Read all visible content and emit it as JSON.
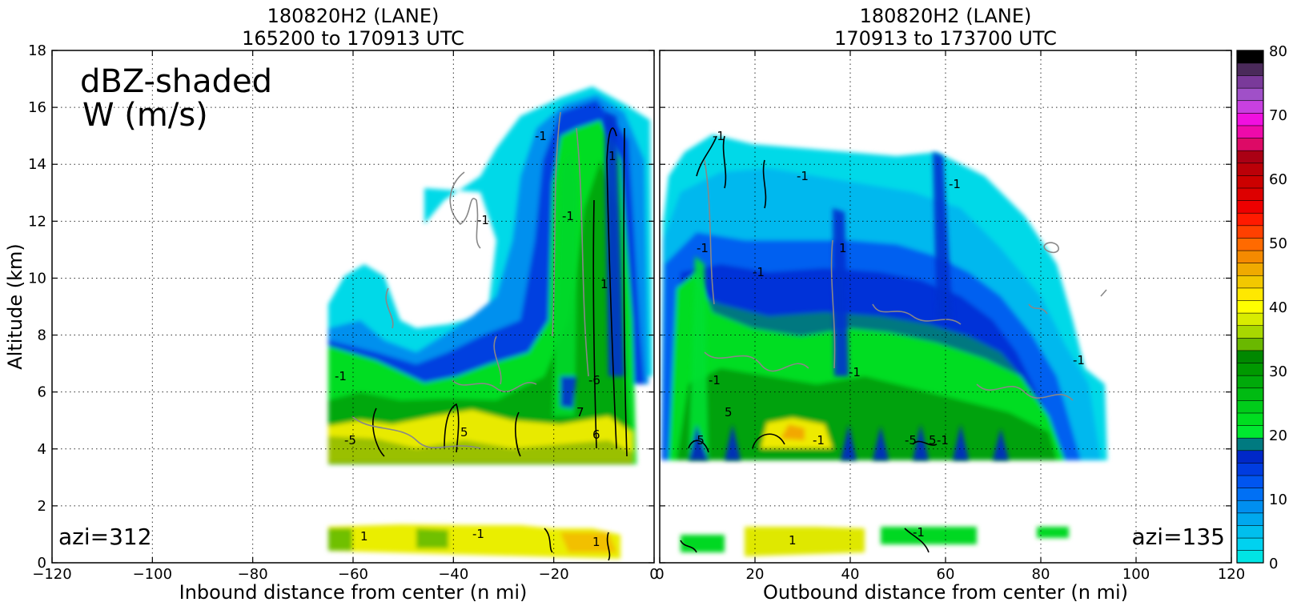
{
  "chart_data": [
    {
      "type": "heatmap",
      "title": "180820H2 (LANE)",
      "subtitle": "165200 to 170913 UTC",
      "xlabel": "Inbound distance from center (n mi)",
      "ylabel": "Altitude (km)",
      "xlim": [
        -120,
        0
      ],
      "ylim": [
        0,
        18
      ],
      "x_ticks": [
        "−120",
        "−100",
        "−80",
        "−60",
        "−40",
        "−20",
        "0"
      ],
      "y_ticks": [
        "0",
        "2",
        "4",
        "6",
        "8",
        "10",
        "12",
        "14",
        "16",
        "18"
      ],
      "annotation": "dBZ-shaded",
      "annotation2": "W (m/s)",
      "corner_label": "azi=312",
      "contour_labels": [
        "1",
        "-1",
        "5",
        "-5",
        "-6",
        "7",
        "6"
      ],
      "grid": true
    },
    {
      "type": "heatmap",
      "title": "180820H2 (LANE)",
      "subtitle": "170913 to 173700 UTC",
      "xlabel": "Outbound distance from center (n mi)",
      "xlim": [
        0,
        120
      ],
      "ylim": [
        0,
        18
      ],
      "x_ticks": [
        "0",
        "20",
        "40",
        "60",
        "80",
        "100",
        "120"
      ],
      "corner_label": "azi=135",
      "contour_labels": [
        "1",
        "-1",
        "5",
        "-5"
      ],
      "grid": true
    }
  ],
  "colorbar": {
    "ticks": [
      "0",
      "10",
      "20",
      "30",
      "40",
      "50",
      "60",
      "70",
      "80"
    ],
    "range": [
      0,
      80
    ],
    "colors": [
      "#00e5e5",
      "#00d2f0",
      "#00bfee",
      "#00a8ee",
      "#008ff0",
      "#0070f5",
      "#0055f0",
      "#003ce0",
      "#0028c8",
      "#007a80",
      "#00e830",
      "#00dd20",
      "#00cc1a",
      "#00bb12",
      "#00aa0a",
      "#009900",
      "#008800",
      "#6ab800",
      "#a8d800",
      "#d8ec00",
      "#ffff00",
      "#ffe800",
      "#f2c800",
      "#f0aa00",
      "#f58a00",
      "#ff6a00",
      "#ff4000",
      "#ff1a00",
      "#ee0000",
      "#dd0000",
      "#cc0000",
      "#bb0008",
      "#aa0014",
      "#dd0a66",
      "#ee0aaa",
      "#f010e0",
      "#c840e0",
      "#a050c8",
      "#7a3a9a",
      "#4a2a5a",
      "#000000"
    ]
  }
}
